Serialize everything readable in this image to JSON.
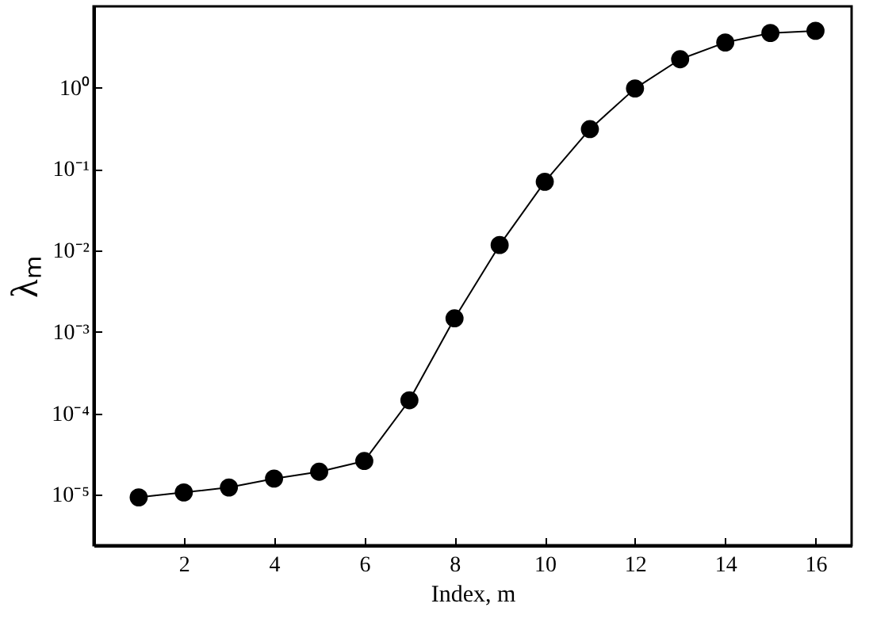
{
  "chart_data": {
    "type": "line",
    "xlabel": "Index, m",
    "ylabel": "λₘ",
    "log": "y",
    "marker": "circle",
    "line_style": "solid",
    "grid": false,
    "x": [
      1,
      2,
      3,
      4,
      5,
      6,
      7,
      8,
      9,
      10,
      11,
      12,
      13,
      14,
      15,
      16
    ],
    "series": [
      {
        "color": "#000000",
        "values": [
          9.3e-06,
          1.07e-05,
          1.23e-05,
          1.58e-05,
          1.92e-05,
          2.6e-05,
          0.000145,
          0.00147,
          0.0117,
          0.07,
          0.31,
          0.98,
          2.24,
          3.6,
          4.7,
          5.0
        ]
      }
    ],
    "xlim": [
      0,
      16.8
    ],
    "xticks": [
      2,
      4,
      6,
      8,
      10,
      12,
      14,
      16
    ],
    "ylim": [
      2.4e-06,
      10
    ],
    "yticks": [
      {
        "value": 1e-05,
        "label": "10⁻⁵"
      },
      {
        "value": 0.0001,
        "label": "10⁻⁴"
      },
      {
        "value": 0.001,
        "label": "10⁻³"
      },
      {
        "value": 0.01,
        "label": "10⁻²"
      },
      {
        "value": 0.1,
        "label": "10⁻¹"
      },
      {
        "value": 1,
        "label": "10⁰"
      }
    ]
  }
}
